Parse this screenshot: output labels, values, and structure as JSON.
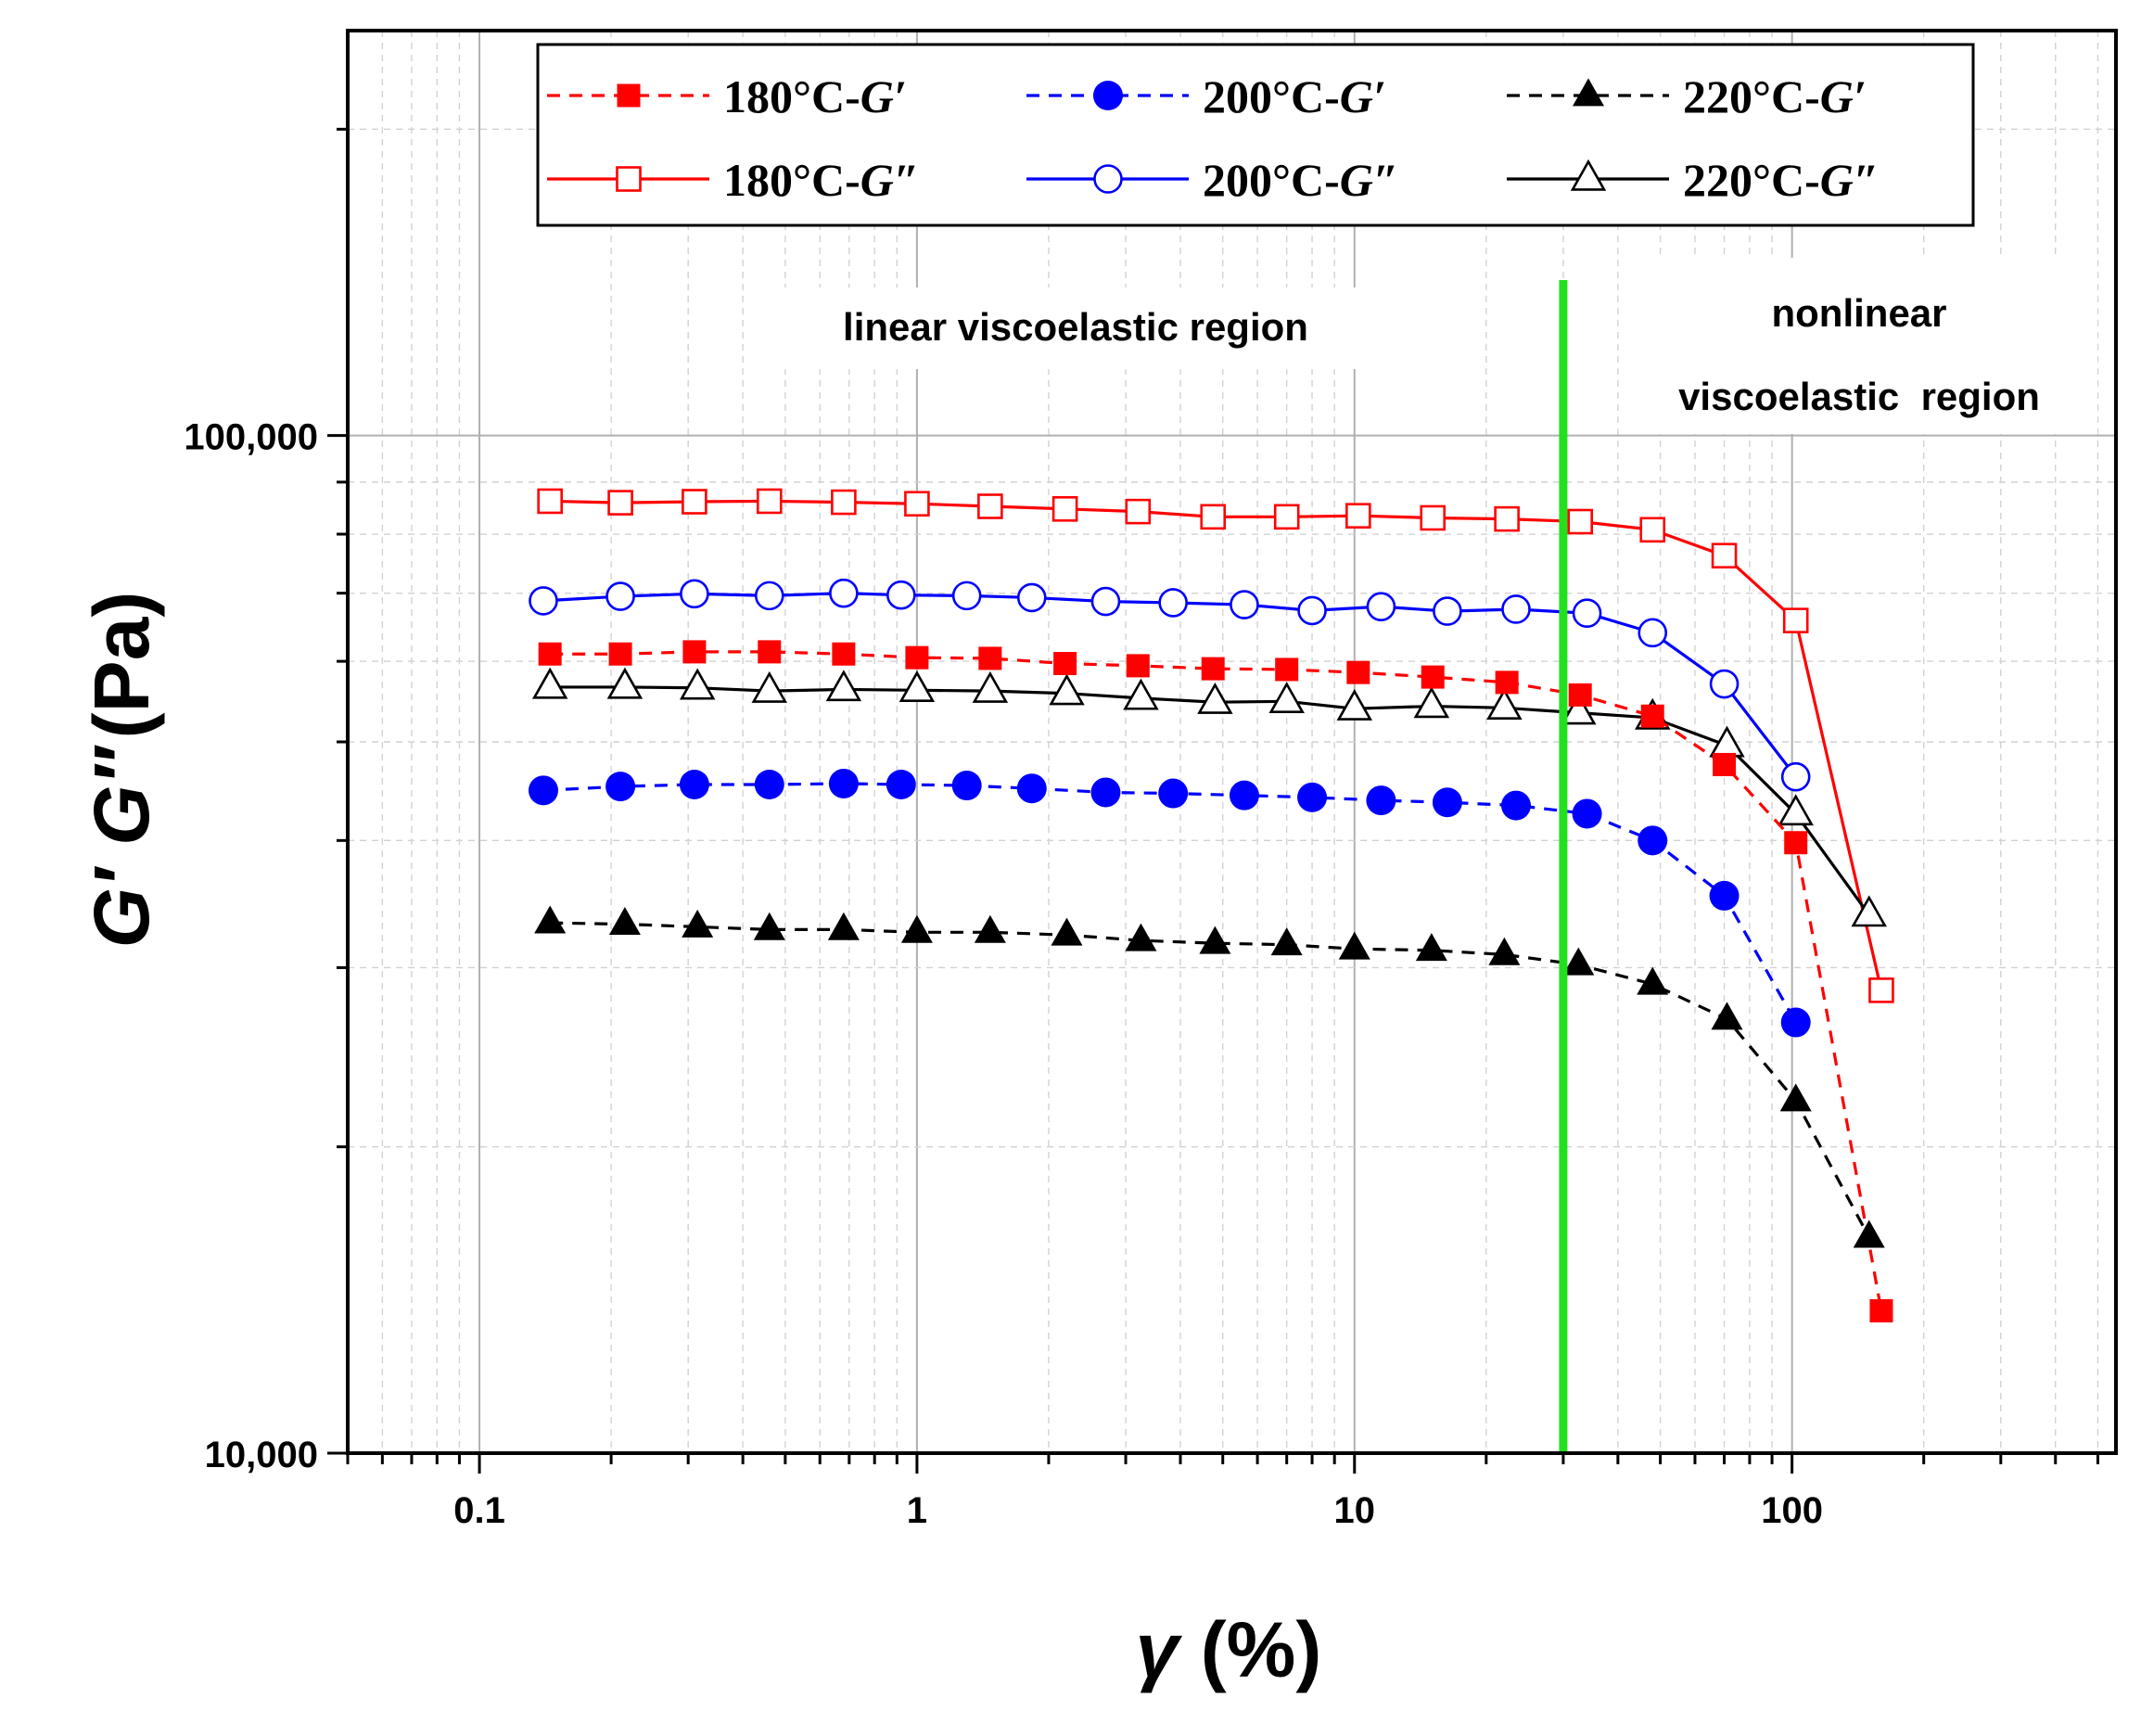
{
  "chart_data": {
    "type": "scatter",
    "title": "",
    "xlabel": "γ (%)",
    "ylabel": "G′ G″ (Pa)",
    "xscale": "log",
    "yscale": "log",
    "xlim": [
      0.05,
      550
    ],
    "ylim": [
      10000,
      250000
    ],
    "grid": true,
    "legend_position": "top",
    "x_ticks": [
      {
        "value": 0.1,
        "label": "0.1"
      },
      {
        "value": 1,
        "label": "1"
      },
      {
        "value": 10,
        "label": "10"
      },
      {
        "value": 100,
        "label": "100"
      }
    ],
    "y_ticks": [
      {
        "value": 10000,
        "label": "10,000"
      },
      {
        "value": 100000,
        "label": "100,000"
      }
    ],
    "annotations": [
      {
        "text": "linear viscoelastic region"
      },
      {
        "text": "nonlinear"
      },
      {
        "text": "viscoelastic  region"
      }
    ],
    "vertical_line": {
      "x": 30,
      "color": "#22e01e"
    },
    "series": [
      {
        "name": "180°C-G′",
        "label_base": "180°C-",
        "label_var": "G′",
        "color": "#ff0000",
        "marker": "square",
        "filled": true,
        "line": "dashed",
        "x": [
          0.145,
          0.21,
          0.31,
          0.46,
          0.68,
          1.0,
          1.47,
          2.18,
          3.2,
          4.75,
          7.0,
          10.2,
          15.1,
          22.3,
          32.8,
          48.0,
          70.0,
          102.0,
          160.0
        ],
        "y": [
          61000,
          61000,
          61300,
          61300,
          61000,
          60500,
          60400,
          59700,
          59400,
          59000,
          58900,
          58500,
          57900,
          57200,
          55600,
          53000,
          47500,
          39800,
          13800
        ]
      },
      {
        "name": "200°C-G′",
        "label_base": "200°C-",
        "label_var": "G′",
        "color": "#0000ff",
        "marker": "circle",
        "filled": true,
        "line": "dashed",
        "x": [
          0.14,
          0.21,
          0.31,
          0.46,
          0.68,
          0.92,
          1.3,
          1.83,
          2.7,
          3.85,
          5.6,
          8.0,
          11.5,
          16.3,
          23.4,
          34.0,
          48.0,
          70.0,
          102.0
        ],
        "y": [
          44800,
          45200,
          45400,
          45400,
          45500,
          45400,
          45300,
          45000,
          44600,
          44500,
          44300,
          44100,
          43800,
          43600,
          43300,
          42500,
          40000,
          35300,
          26500
        ]
      },
      {
        "name": "220°C-G′",
        "label_base": "220°C-",
        "label_var": "G′",
        "color": "#000000",
        "marker": "triangle",
        "filled": true,
        "line": "dashed",
        "x": [
          0.145,
          0.215,
          0.315,
          0.46,
          0.68,
          1.0,
          1.47,
          2.2,
          3.25,
          4.8,
          7.0,
          10.0,
          15.0,
          22.0,
          32.5,
          48.0,
          71.0,
          102.0,
          150.0
        ],
        "y": [
          33200,
          33100,
          32900,
          32700,
          32700,
          32500,
          32500,
          32300,
          31900,
          31700,
          31600,
          31300,
          31200,
          30900,
          30200,
          28900,
          26700,
          22200,
          16300
        ]
      },
      {
        "name": "180°C-G″",
        "label_base": "180°C-",
        "label_var": "G″",
        "color": "#ff0000",
        "marker": "square",
        "filled": false,
        "line": "solid",
        "x": [
          0.145,
          0.21,
          0.31,
          0.46,
          0.68,
          1.0,
          1.47,
          2.18,
          3.2,
          4.75,
          7.0,
          10.2,
          15.1,
          22.3,
          32.8,
          48.0,
          70.0,
          102.0,
          160.0
        ],
        "y": [
          86200,
          85900,
          86100,
          86200,
          86000,
          85700,
          85200,
          84700,
          84200,
          83200,
          83200,
          83400,
          83000,
          82800,
          82300,
          80800,
          76200,
          65800,
          28500
        ]
      },
      {
        "name": "200°C-G″",
        "label_base": "200°C-",
        "label_var": "G″",
        "color": "#0000ff",
        "marker": "circle",
        "filled": false,
        "line": "solid",
        "x": [
          0.14,
          0.21,
          0.31,
          0.46,
          0.68,
          0.92,
          1.3,
          1.83,
          2.7,
          3.85,
          5.6,
          8.0,
          11.5,
          16.3,
          23.4,
          34.0,
          48.0,
          70.0,
          102.0
        ],
        "y": [
          68800,
          69500,
          69900,
          69600,
          70000,
          69700,
          69600,
          69300,
          68700,
          68500,
          68200,
          67300,
          67900,
          67200,
          67500,
          66900,
          64000,
          57000,
          46200
        ]
      },
      {
        "name": "220°C-G″",
        "label_base": "220°C-",
        "label_var": "G″",
        "color": "#000000",
        "marker": "triangle",
        "filled": false,
        "line": "solid",
        "x": [
          0.145,
          0.215,
          0.315,
          0.46,
          0.68,
          1.0,
          1.47,
          2.2,
          3.25,
          4.8,
          7.0,
          10.0,
          15.0,
          22.0,
          32.5,
          48.0,
          71.0,
          102.0,
          150.0
        ],
        "y": [
          56600,
          56600,
          56500,
          56100,
          56300,
          56200,
          56100,
          55800,
          55200,
          54700,
          54800,
          53900,
          54200,
          54000,
          53400,
          52800,
          49600,
          42500,
          33800
        ]
      }
    ]
  }
}
